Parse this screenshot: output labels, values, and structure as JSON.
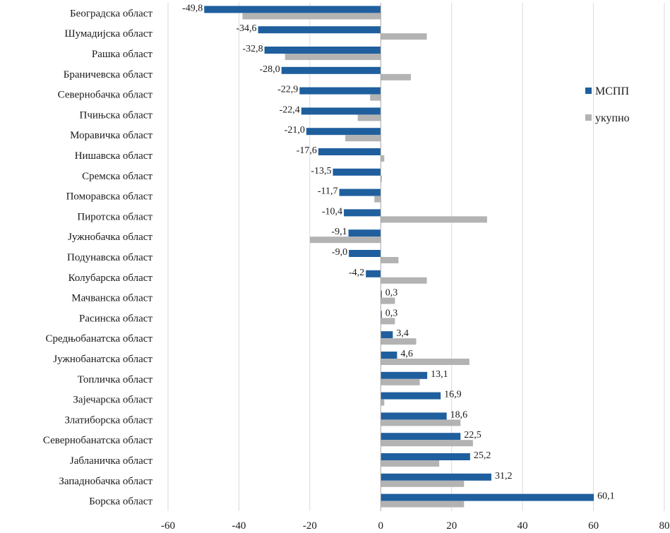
{
  "chart_data": {
    "type": "bar",
    "orientation": "horizontal",
    "categories": [
      "Београдска област",
      "Шумадијска област",
      "Рашка област",
      "Браничевска област",
      "Севернобачка област",
      "Пчињска област",
      "Моравичка област",
      "Нишавска област",
      "Сремска област",
      "Поморавска област",
      "Пиротска област",
      "Јужнобачка област",
      "Подунавска област",
      "Колубарска област",
      "Мачванска област",
      "Расинска област",
      "Средњобанатска област",
      "Јужнобанатска област",
      "Топличка област",
      "Зајечарска област",
      "Златиборска област",
      "Севернобанатска област",
      "Јабланичка област",
      "Западнобачка област",
      "Борска област"
    ],
    "series": [
      {
        "name": "МСПП",
        "color": "#1f5f9e",
        "values": [
          -49.8,
          -34.6,
          -32.8,
          -28.0,
          -22.9,
          -22.4,
          -21.0,
          -17.6,
          -13.5,
          -11.7,
          -10.4,
          -9.1,
          -9.0,
          -4.2,
          0.3,
          0.3,
          3.4,
          4.6,
          13.1,
          16.9,
          18.6,
          22.5,
          25.2,
          31.2,
          60.1
        ],
        "data_labels": [
          "-49,8",
          "-34,6",
          "-32,8",
          "-28,0",
          "-22,9",
          "-22,4",
          "-21,0",
          "-17,6",
          "-13,5",
          "-11,7",
          "-10,4",
          "-9,1",
          "-9,0",
          "-4,2",
          "0,3",
          "0,3",
          "3,4",
          "4,6",
          "13,1",
          "16,9",
          "18,6",
          "22,5",
          "25,2",
          "31,2",
          "60,1"
        ]
      },
      {
        "name": "укупно",
        "color": "#b3b3b3",
        "values": [
          -39,
          13,
          -27,
          8.5,
          -3,
          -6.5,
          -10,
          1,
          0.3,
          -1.8,
          30,
          -20,
          5,
          13,
          4,
          4,
          10,
          25,
          11,
          1,
          22.5,
          26,
          16.5,
          23.5,
          23.5
        ]
      }
    ],
    "xlim": [
      -60,
      80
    ],
    "xticks": [
      -60,
      -40,
      -20,
      0,
      20,
      40,
      60,
      80
    ],
    "xtick_labels": [
      "-60",
      "-40",
      "-20",
      "0",
      "20",
      "40",
      "60",
      "80"
    ],
    "grid": "vertical",
    "legend": "right"
  }
}
